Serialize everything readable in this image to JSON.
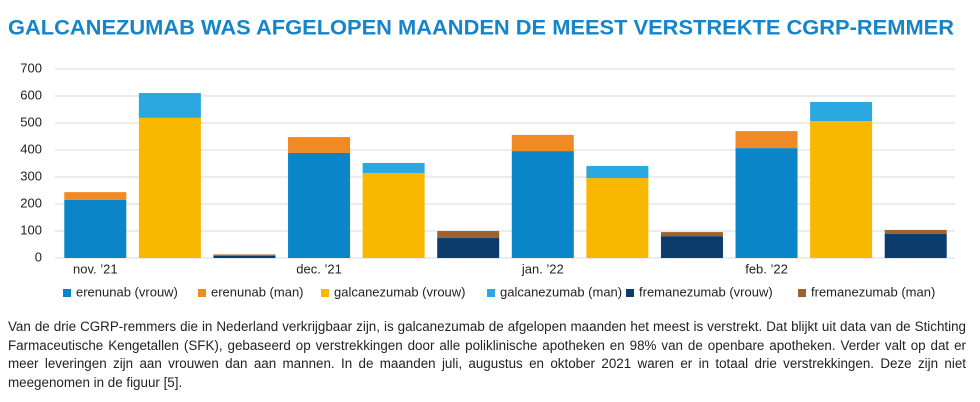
{
  "chart_data": {
    "type": "bar",
    "title": "GALCANEZUMAB WAS AFGELOPEN MAANDEN DE MEEST VERSTREKTE CGRP-REMMER",
    "categories": [
      "nov. ’21",
      "dec. ’21",
      "jan. ’22",
      "feb. ’22"
    ],
    "series": [
      {
        "name": "erenunab (vrouw)",
        "color": "#0a86c8",
        "stack": 0,
        "values": [
          215,
          389,
          396,
          407
        ]
      },
      {
        "name": "erenunab (man)",
        "color": "#f08a24",
        "stack": 0,
        "values": [
          29,
          59,
          60,
          63
        ]
      },
      {
        "name": "galcanezumab (vrouw)",
        "color": "#f9b800",
        "stack": 1,
        "values": [
          519,
          315,
          296,
          507
        ]
      },
      {
        "name": "galcanezumab (man)",
        "color": "#2ba8e0",
        "stack": 1,
        "values": [
          92,
          37,
          45,
          71
        ]
      },
      {
        "name": "fremanezumab (vrouw)",
        "color": "#0b3c6b",
        "stack": 2,
        "values": [
          8,
          74,
          81,
          89
        ]
      },
      {
        "name": "fremanezumab (man)",
        "color": "#a0622d",
        "stack": 2,
        "values": [
          5,
          26,
          15,
          15
        ]
      }
    ],
    "ylim": [
      0,
      700
    ],
    "yticks": [
      0,
      100,
      200,
      300,
      400,
      500,
      600,
      700
    ],
    "grid": true,
    "legend": "bottom"
  },
  "caption": "Van de drie CGRP-remmers die in Nederland verkrijgbaar zijn, is galcanezumab de afgelopen maanden het meest is verstrekt. Dat blijkt uit data van de Stichting Farmaceutische Kengetallen (SFK), gebaseerd op verstrekkingen door alle poliklinische apotheken en 98% van de openbare apotheken. Verder valt op dat er meer leveringen zijn aan vrouwen dan aan mannen. In de maanden juli, augustus en oktober 2021 waren er in totaal drie verstrekkingen. Deze zijn niet meegenomen in de figuur [5]."
}
